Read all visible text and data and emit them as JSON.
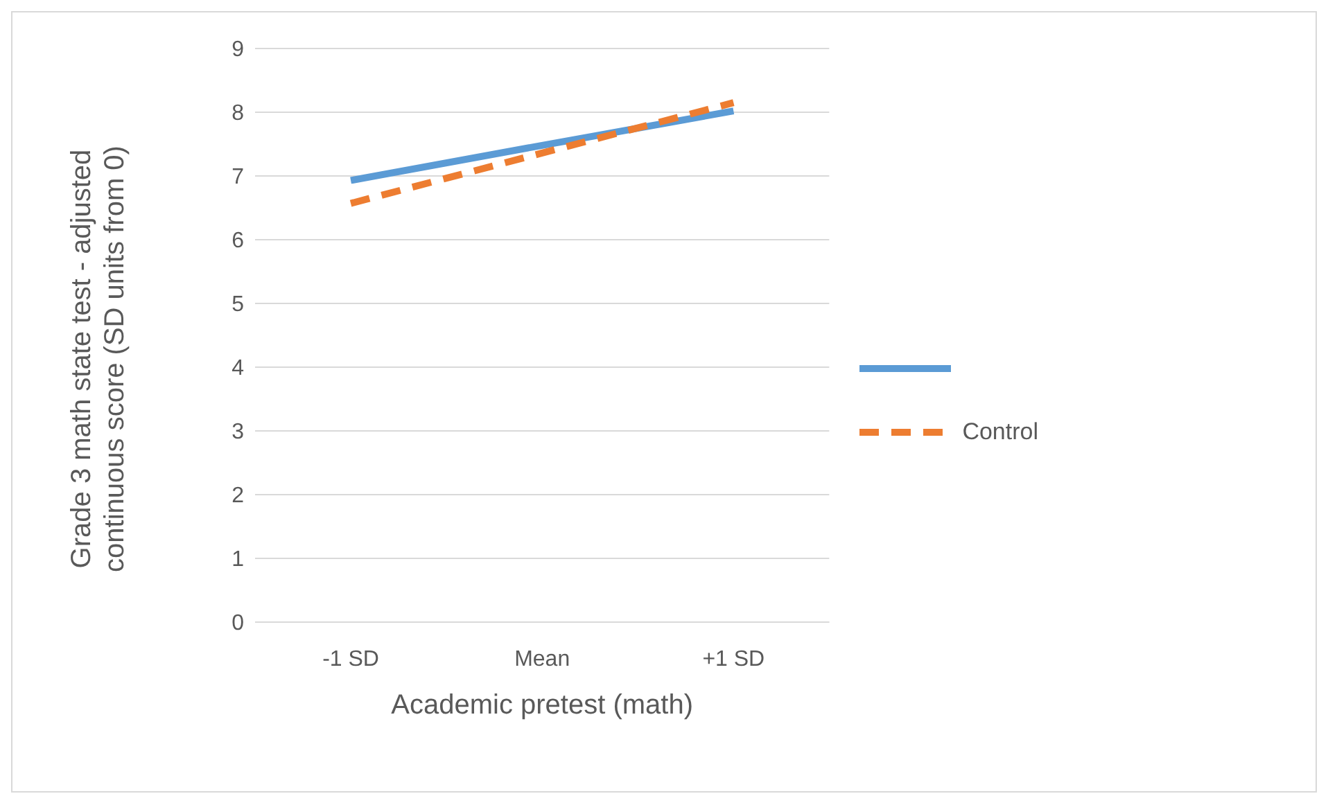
{
  "chart_data": {
    "type": "line",
    "xlabel": "Academic pretest (math)",
    "ylabel": "Grade 3 math state test - adjusted continuous score (SD units from 0)",
    "categories": [
      "-1 SD",
      "Mean",
      "+1 SD"
    ],
    "series": [
      {
        "color": "#5b9bd5",
        "values": [
          6.93,
          7.48,
          8.02
        ],
        "line_style": "solid"
      },
      {
        "name": "Control",
        "color": "#ed7d31",
        "values": [
          6.57,
          7.36,
          8.15
        ],
        "line_style": "dashed"
      }
    ],
    "ylim": [
      0,
      9
    ],
    "yticks": [
      0,
      1,
      2,
      3,
      4,
      5,
      6,
      7,
      8,
      9
    ],
    "grid": "y",
    "legend": "right",
    "marker": "none"
  }
}
